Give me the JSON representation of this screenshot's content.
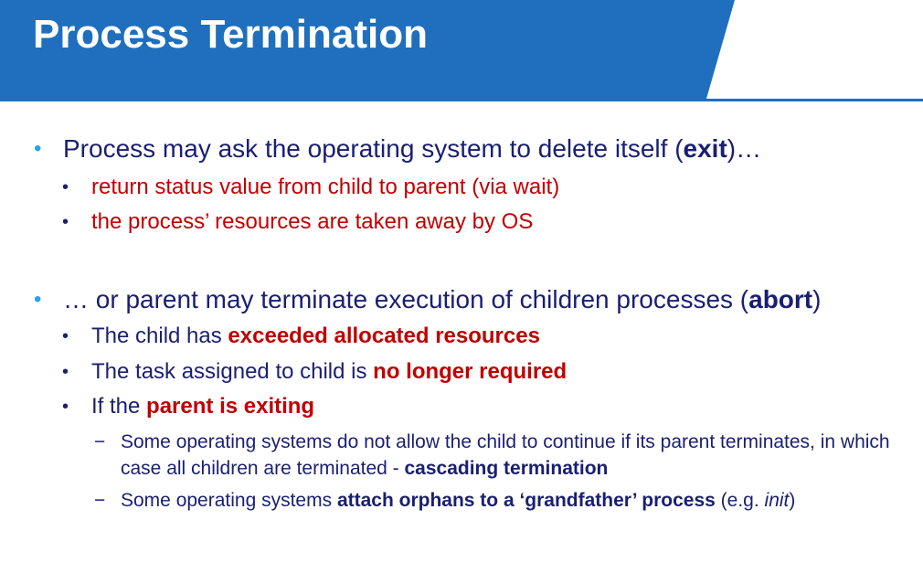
{
  "slide": {
    "title": "Process Termination",
    "colors": {
      "header_blue": "#1f6fbe",
      "accent_line": "#1f6fbe",
      "bullet_blue": "#29a3e6",
      "text_navy": "#1a1f71",
      "text_red": "#c00000"
    }
  },
  "content": {
    "b1": {
      "marker": "•",
      "t1": "Process may ask the operating system to delete itself (",
      "t2": "exit",
      "t3": ")…",
      "subs": [
        {
          "marker": "•",
          "text": "return status value from child to parent (via wait)"
        },
        {
          "marker": "•",
          "text": "the process’ resources are taken away by OS"
        }
      ]
    },
    "b2": {
      "marker": "•",
      "t1": "… or parent may terminate execution of children processes (",
      "t2": "abort",
      "t3": ")",
      "s1": {
        "marker": "•",
        "t1": "The child has ",
        "t2": "exceeded allocated resources"
      },
      "s2": {
        "marker": "•",
        "t1": "The task assigned to child is ",
        "t2": "no longer required"
      },
      "s3": {
        "marker": "•",
        "t1": "If the ",
        "t2": "parent is exiting"
      },
      "ss1": {
        "marker": "−",
        "t1": "Some operating systems do not allow the child to continue if its parent terminates, in which case all children are terminated - ",
        "t2": "cascading termination"
      },
      "ss2": {
        "marker": "−",
        "t1": "Some operating systems ",
        "t2": "attach orphans to a ‘grandfather’ process",
        "t3": " (e.g. ",
        "t4": "init",
        "t5": ")"
      }
    }
  }
}
